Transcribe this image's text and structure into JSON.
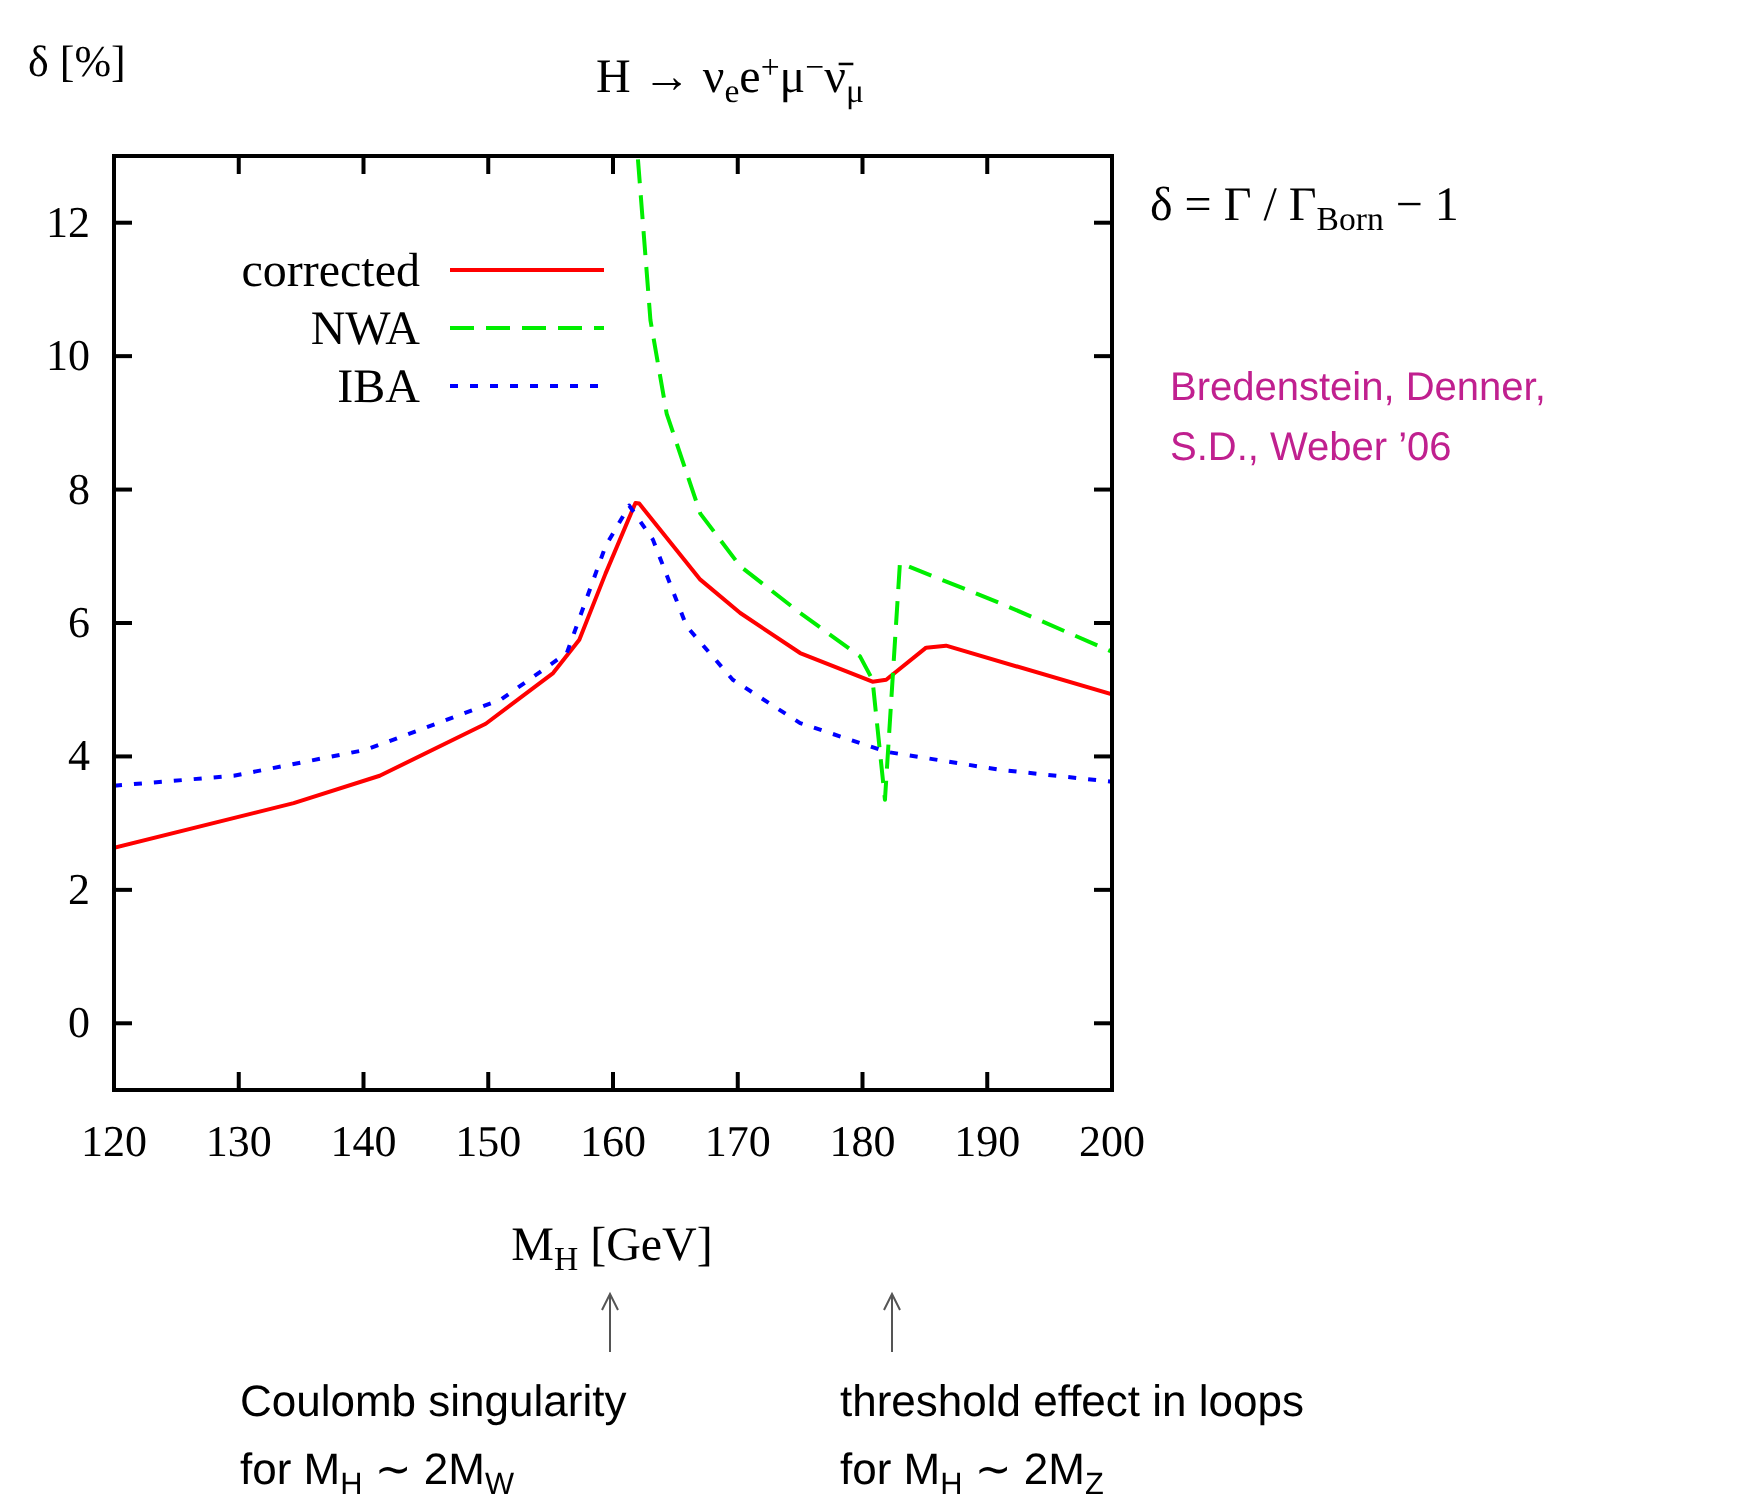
{
  "chart_data": {
    "type": "line",
    "title": "H → ν$_{e}$e$^{+}$μ$^{−}$ν̄$_{μ}$",
    "xlabel": "M$_{H}$ [GeV]",
    "ylabel": "δ [%]",
    "xlim": [
      120,
      200
    ],
    "ylim": [
      -1,
      13
    ],
    "xticks": [
      120,
      130,
      140,
      150,
      160,
      170,
      180,
      190,
      200
    ],
    "yticks": [
      0,
      2,
      4,
      6,
      8,
      10,
      12
    ],
    "grid": false,
    "legend": "top left",
    "marker": "none",
    "series": [
      {
        "name": "corrected",
        "color": "#ff0000",
        "line_style": "solid",
        "x": [
          120,
          134.4,
          141.3,
          149.8,
          155.2,
          157.3,
          159.4,
          161.8,
          162.1,
          167,
          170.2,
          175,
          180.8,
          181.9,
          185.1,
          186.7,
          200
        ],
        "values": [
          2.63,
          3.3,
          3.71,
          4.49,
          5.25,
          5.75,
          6.74,
          7.8,
          7.79,
          6.65,
          6.15,
          5.55,
          5.12,
          5.15,
          5.63,
          5.66,
          4.93
        ]
      },
      {
        "name": "NWA",
        "color": "#00ee00",
        "line_style": "dashed",
        "x": [
          162.0,
          163.0,
          164.3,
          167,
          170.2,
          175,
          179.8,
          180.8,
          181.8,
          183,
          191,
          200
        ],
        "values": [
          12.95,
          10.54,
          9.14,
          7.64,
          6.85,
          6.15,
          5.5,
          5.15,
          3.35,
          6.9,
          6.3,
          5.57
        ]
      },
      {
        "name": "IBA",
        "color": "#0000ff",
        "line_style": "dotted",
        "x": [
          120,
          129.6,
          140.2,
          151,
          156.3,
          159.4,
          161.3,
          163.2,
          165.9,
          169.6,
          175,
          181.9,
          191,
          200
        ],
        "values": [
          3.56,
          3.71,
          4.1,
          4.85,
          5.55,
          7.15,
          7.76,
          7.25,
          5.95,
          5.15,
          4.5,
          4.07,
          3.8,
          3.62
        ]
      }
    ],
    "annotations": [
      "δ = Γ / Γ$_{Born}$ − 1",
      "Bredenstein, Denner,\nS.D., Weber ’06",
      "Coulomb singularity\nfor M$_{H}$ ∼ 2M$_{W}$",
      "threshold effect in loops\nfor M$_{H}$ ∼ 2M$_{Z}$"
    ]
  }
}
